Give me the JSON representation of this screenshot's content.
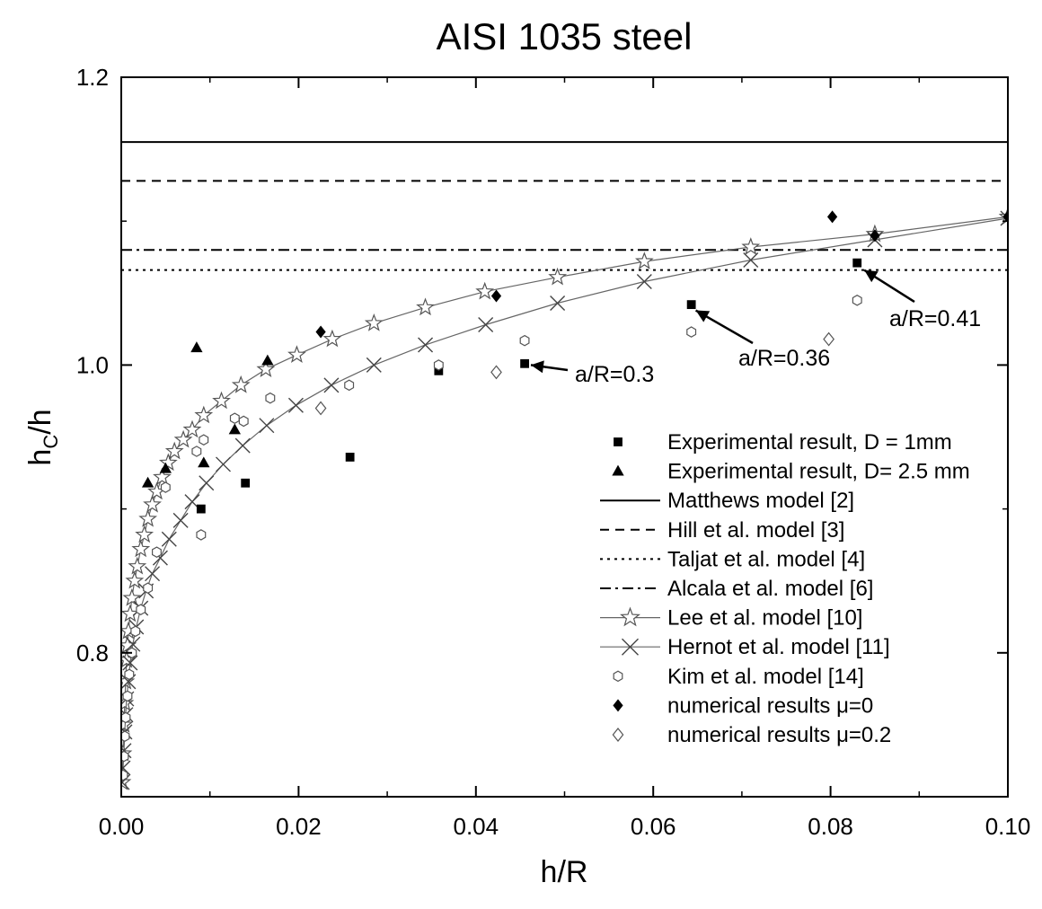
{
  "chart_data": {
    "type": "scatter",
    "title": "AISI 1035 steel",
    "xlabel_main": "h/R",
    "ylabel_main": "h",
    "ylabel_sub": "C",
    "ylabel_tail": "/h",
    "xlim": [
      0,
      0.1
    ],
    "ylim": [
      0.7,
      1.2
    ],
    "xticks": [
      0,
      0.02,
      0.04,
      0.06,
      0.08,
      0.1
    ],
    "xtick_labels": [
      "0.00",
      "0.02",
      "0.04",
      "0.06",
      "0.08",
      "0.10"
    ],
    "yticks": [
      0.8,
      1.0,
      1.2
    ],
    "ytick_labels": [
      "0.8",
      "1.0",
      "1.2"
    ],
    "grid": false,
    "legend_position": "bottom-right",
    "series": [
      {
        "key": "exp1",
        "name": "Experimental result, D = 1mm",
        "marker": "square",
        "style": "markers",
        "x": [
          0.009,
          0.014,
          0.0258,
          0.0358,
          0.0455,
          0.0643,
          0.083
        ],
        "y": [
          0.9,
          0.918,
          0.936,
          0.996,
          1.001,
          1.042,
          1.071
        ]
      },
      {
        "key": "exp25",
        "name": "Experimental result, D= 2.5 mm",
        "marker": "triangle",
        "style": "markers",
        "x": [
          0.003,
          0.005,
          0.0085,
          0.0093,
          0.0128,
          0.0165
        ],
        "y": [
          0.918,
          0.928,
          1.012,
          0.932,
          0.955,
          1.003
        ]
      },
      {
        "key": "matthews",
        "name": "Matthews model [2]",
        "style": "hline",
        "dash": "solid",
        "y": [
          1.155
        ]
      },
      {
        "key": "hill",
        "name": "Hill et al. model [3]",
        "style": "hline",
        "dash": "dash",
        "y": [
          1.128
        ]
      },
      {
        "key": "taljat",
        "name": "Taljat et al. model [4]",
        "style": "hline",
        "dash": "dot",
        "y": [
          1.066
        ]
      },
      {
        "key": "alcala",
        "name": "Alcala et al. model [6]",
        "style": "hline",
        "dash": "dashdot",
        "y": [
          1.08
        ]
      },
      {
        "key": "lee",
        "name": "Lee et al. model [10]",
        "marker": "star",
        "style": "line+markers",
        "x": [
          0.0001,
          0.0002,
          0.0003,
          0.0004,
          0.0005,
          0.0006,
          0.0007,
          0.0008,
          0.001,
          0.0012,
          0.0015,
          0.0018,
          0.0022,
          0.0026,
          0.003,
          0.0035,
          0.004,
          0.0046,
          0.0053,
          0.006,
          0.007,
          0.008,
          0.0093,
          0.0113,
          0.0135,
          0.0163,
          0.0198,
          0.0238,
          0.0285,
          0.0343,
          0.041,
          0.0492,
          0.059,
          0.071,
          0.085,
          0.1
        ],
        "y": [
          0.71,
          0.73,
          0.75,
          0.765,
          0.78,
          0.795,
          0.805,
          0.815,
          0.827,
          0.838,
          0.85,
          0.86,
          0.872,
          0.882,
          0.893,
          0.903,
          0.912,
          0.922,
          0.932,
          0.94,
          0.948,
          0.955,
          0.965,
          0.975,
          0.986,
          0.997,
          1.007,
          1.018,
          1.029,
          1.04,
          1.051,
          1.061,
          1.072,
          1.082,
          1.091,
          1.103
        ]
      },
      {
        "key": "hernot",
        "name": "Hernot et al. model [11]",
        "marker": "x",
        "style": "line+markers",
        "x": [
          0.0001,
          0.0002,
          0.0003,
          0.0004,
          0.0005,
          0.0006,
          0.0008,
          0.001,
          0.0013,
          0.0017,
          0.0022,
          0.0028,
          0.0035,
          0.0044,
          0.0054,
          0.0067,
          0.008,
          0.0096,
          0.0115,
          0.0137,
          0.0164,
          0.0197,
          0.0237,
          0.0285,
          0.0343,
          0.0411,
          0.0492,
          0.059,
          0.071,
          0.085,
          0.1
        ],
        "y": [
          0.71,
          0.72,
          0.732,
          0.745,
          0.757,
          0.768,
          0.78,
          0.793,
          0.806,
          0.818,
          0.831,
          0.843,
          0.855,
          0.866,
          0.879,
          0.892,
          0.905,
          0.918,
          0.931,
          0.944,
          0.958,
          0.972,
          0.986,
          1.0,
          1.014,
          1.028,
          1.043,
          1.058,
          1.073,
          1.087,
          1.102
        ]
      },
      {
        "key": "kim",
        "name": "Kim et al. model [14]",
        "marker": "hexagon",
        "style": "markers",
        "x": [
          0.0002,
          0.0003,
          0.0004,
          0.0005,
          0.0007,
          0.0009,
          0.0012,
          0.0016,
          0.0022,
          0.003,
          0.004,
          0.005,
          0.009,
          0.0085,
          0.0093,
          0.0128,
          0.0138,
          0.0168,
          0.0257,
          0.0358,
          0.0455,
          0.0643,
          0.083
        ],
        "y": [
          0.715,
          0.728,
          0.742,
          0.755,
          0.77,
          0.785,
          0.8,
          0.815,
          0.83,
          0.845,
          0.87,
          0.915,
          0.882,
          0.94,
          0.948,
          0.963,
          0.961,
          0.977,
          0.986,
          1.0,
          1.017,
          1.023,
          1.045
        ]
      },
      {
        "key": "mu0",
        "name": "numerical results μ=0",
        "marker": "diamond-filled",
        "style": "markers",
        "x": [
          0.0225,
          0.0423,
          0.0802,
          0.085,
          0.1
        ],
        "y": [
          1.023,
          1.048,
          1.103,
          1.09,
          1.103
        ]
      },
      {
        "key": "mu02",
        "name": "numerical results μ=0.2",
        "marker": "diamond-open",
        "style": "markers",
        "x": [
          0.0225,
          0.0423,
          0.0798
        ],
        "y": [
          0.97,
          0.995,
          1.018
        ]
      }
    ],
    "annotations": [
      {
        "text": "a/R=0.3",
        "arrow_to": [
          0.0462,
          1.0
        ]
      },
      {
        "text": "a/R=0.36",
        "arrow_to": [
          0.0648,
          1.038
        ]
      },
      {
        "text": "a/R=0.41",
        "arrow_to": [
          0.0838,
          1.066
        ]
      }
    ]
  }
}
